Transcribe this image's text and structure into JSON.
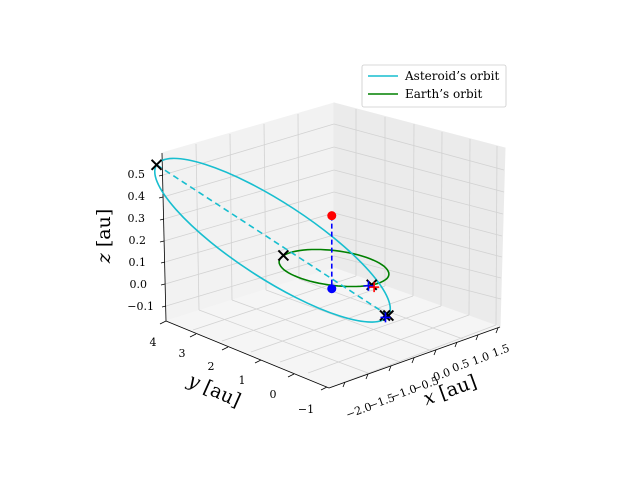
{
  "chart_data": {
    "type": "3d-line",
    "legend": {
      "placement": "top-right",
      "entries": [
        {
          "label": "Asteroid’s orbit",
          "color": "#17becf"
        },
        {
          "label": "Earth’s orbit",
          "color": "#008000"
        }
      ]
    },
    "axes": {
      "x": {
        "label_var": "x",
        "label_unit": "[au]",
        "ticks": [
          "−2.0",
          "−1.5",
          "−1.0",
          "−0.5",
          "0.0",
          "0.5",
          "1.0",
          "1.5"
        ],
        "range": [
          -2.1,
          1.7
        ]
      },
      "y": {
        "label_var": "y",
        "label_unit": "[au]",
        "ticks": [
          "−1",
          "0",
          "1",
          "2",
          "3",
          "4"
        ],
        "range": [
          -1.1,
          4.1
        ]
      },
      "z": {
        "label_var": "z",
        "label_unit": "[au]",
        "ticks": [
          "−0.1",
          "0.0",
          "0.1",
          "0.2",
          "0.3",
          "0.4",
          "0.5"
        ],
        "range": [
          -0.16,
          0.58
        ]
      },
      "grid": true
    },
    "series": [
      {
        "name": "Asteroid’s orbit",
        "kind": "ellipse-3d",
        "color": "#17becf",
        "points_xyz": [
          [
            -1.45,
            3.5,
            0.55
          ],
          [
            0.97,
            -0.35,
            -0.17
          ]
        ]
      },
      {
        "name": "Earth’s orbit",
        "kind": "circle",
        "color": "#008000",
        "center": [
          0,
          0,
          0
        ],
        "radius": 1.0
      }
    ],
    "markers": [
      {
        "kind": "point",
        "color": "#ff0000",
        "xyz": [
          -0.05,
          0.0,
          0.24
        ]
      },
      {
        "kind": "point",
        "color": "#0000ff",
        "xyz": [
          -0.05,
          0.0,
          -0.1
        ]
      },
      {
        "kind": "x",
        "color": "#000000",
        "xyz": [
          -1.45,
          3.5,
          0.55
        ]
      },
      {
        "kind": "x",
        "color": "#000000",
        "xyz": [
          -0.98,
          0.22,
          0.0
        ]
      },
      {
        "kind": "x",
        "color": "#000000",
        "xyz": [
          0.97,
          -0.35,
          -0.17
        ]
      },
      {
        "kind": "x",
        "color": "#000000",
        "xyz": [
          0.93,
          -0.3,
          -0.17
        ]
      },
      {
        "kind": "x",
        "color": "#000000",
        "xyz": [
          0.98,
          0.18,
          0.0
        ]
      },
      {
        "kind": "plus",
        "color": "#0000ff",
        "xyz": [
          0.98,
          0.28,
          0.0
        ]
      },
      {
        "kind": "plus",
        "color": "#0000ff",
        "xyz": [
          1.0,
          -0.22,
          -0.17
        ]
      },
      {
        "kind": "plus",
        "color": "#ff0000",
        "xyz": [
          0.94,
          0.05,
          -0.02
        ]
      }
    ],
    "dashed_lines": [
      {
        "color": "#17becf",
        "from": "asteroid-perihelion",
        "to": "asteroid-aphelion"
      },
      {
        "color": "#0000ff",
        "from": "red-point",
        "to": "blue-point"
      }
    ]
  }
}
